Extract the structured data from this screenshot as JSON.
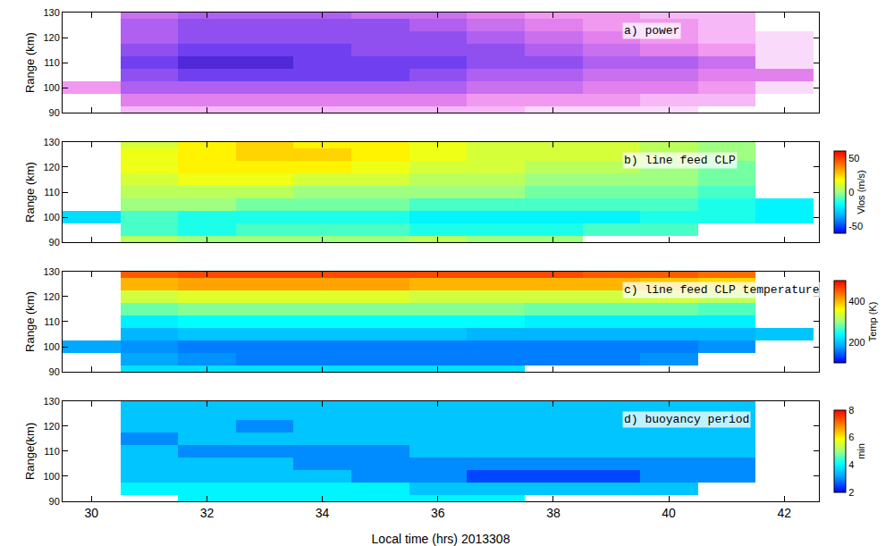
{
  "chart_data": [
    {
      "type": "heatmap",
      "title": "a) power",
      "ylabel": "Range (km)",
      "tick_labels": "y",
      "grid": false,
      "x": [
        30,
        31,
        32,
        33,
        34,
        35,
        36,
        37,
        38,
        39,
        40,
        41,
        42
      ],
      "y": [
        90,
        95,
        100,
        105,
        110,
        115,
        120,
        125,
        130
      ],
      "z": [
        [
          null,
          2,
          2,
          2,
          2,
          2,
          2,
          2,
          1,
          1,
          1,
          null,
          null
        ],
        [
          null,
          4,
          4,
          4,
          4,
          4,
          4,
          3,
          3,
          3,
          2,
          2,
          null
        ],
        [
          3,
          6,
          6,
          6,
          6,
          6,
          6,
          5,
          5,
          4,
          4,
          3,
          1
        ],
        [
          null,
          7,
          8,
          8,
          8,
          8,
          7,
          6,
          6,
          5,
          5,
          4,
          4
        ],
        [
          null,
          8,
          9,
          9,
          8,
          8,
          8,
          7,
          7,
          6,
          6,
          5,
          1
        ],
        [
          null,
          7,
          8,
          8,
          8,
          7,
          7,
          7,
          6,
          5,
          4,
          3,
          1
        ],
        [
          null,
          6,
          7,
          7,
          7,
          7,
          7,
          6,
          5,
          4,
          3,
          2,
          1
        ],
        [
          null,
          6,
          7,
          7,
          7,
          7,
          6,
          5,
          4,
          3,
          3,
          2,
          null
        ],
        [
          null,
          5,
          6,
          6,
          6,
          5,
          5,
          4,
          3,
          3,
          2,
          2,
          null
        ]
      ],
      "zlim": [
        0,
        10
      ],
      "xlim": [
        29.5,
        42.6
      ],
      "xticks": [
        30,
        32,
        34,
        36,
        38,
        40,
        42
      ],
      "ylim": [
        90,
        130
      ],
      "yticks": [
        90,
        100,
        110,
        120,
        130
      ]
    },
    {
      "type": "heatmap",
      "title": "b) line feed CLP",
      "ylabel": "Range (km)",
      "tick_labels": "y",
      "grid": false,
      "x": [
        30,
        31,
        32,
        33,
        34,
        35,
        36,
        37,
        38,
        39,
        40,
        41,
        42
      ],
      "y": [
        90,
        95,
        100,
        105,
        110,
        115,
        120,
        125,
        130
      ],
      "z": [
        [
          null,
          5,
          0,
          0,
          0,
          0,
          5,
          0,
          0,
          null,
          null,
          null,
          null
        ],
        [
          null,
          -10,
          -15,
          -10,
          -10,
          -10,
          -15,
          -15,
          -15,
          -10,
          -10,
          null,
          null
        ],
        [
          -25,
          -10,
          -15,
          -15,
          -15,
          -15,
          -20,
          -20,
          -20,
          -20,
          -15,
          -15,
          -20
        ],
        [
          null,
          0,
          0,
          -5,
          -5,
          -5,
          -10,
          -10,
          -10,
          -10,
          -10,
          -15,
          -20
        ],
        [
          null,
          5,
          5,
          5,
          0,
          0,
          0,
          0,
          -5,
          -5,
          -5,
          -10,
          null
        ],
        [
          null,
          10,
          15,
          15,
          10,
          10,
          5,
          5,
          0,
          0,
          0,
          -5,
          null
        ],
        [
          null,
          15,
          20,
          20,
          20,
          15,
          10,
          10,
          5,
          5,
          0,
          -5,
          null
        ],
        [
          null,
          15,
          20,
          25,
          25,
          20,
          15,
          10,
          10,
          10,
          5,
          0,
          null
        ],
        [
          null,
          10,
          20,
          25,
          20,
          20,
          15,
          10,
          10,
          10,
          5,
          0,
          null
        ]
      ],
      "zlim": [
        -60,
        60
      ],
      "zticks": [
        -50,
        0,
        50
      ],
      "zlabel": "Vlos (m/s)",
      "xlim": [
        29.5,
        42.6
      ],
      "xticks": [
        30,
        32,
        34,
        36,
        38,
        40,
        42
      ],
      "ylim": [
        90,
        130
      ],
      "yticks": [
        90,
        100,
        110,
        120,
        130
      ]
    },
    {
      "type": "heatmap",
      "title": "c) line feed CLP temperature",
      "ylabel": "Range (km)",
      "tick_labels": "y",
      "grid": false,
      "x": [
        30,
        31,
        32,
        33,
        34,
        35,
        36,
        37,
        38,
        39,
        40,
        41,
        42
      ],
      "y": [
        90,
        95,
        100,
        105,
        110,
        115,
        120,
        125,
        130
      ],
      "z": [
        [
          null,
          220,
          220,
          220,
          220,
          220,
          220,
          220,
          null,
          null,
          null,
          null,
          null
        ],
        [
          null,
          180,
          170,
          160,
          160,
          160,
          160,
          160,
          160,
          160,
          170,
          null,
          null
        ],
        [
          180,
          170,
          160,
          160,
          160,
          160,
          160,
          160,
          160,
          160,
          160,
          170,
          null
        ],
        [
          null,
          190,
          200,
          200,
          200,
          200,
          200,
          190,
          190,
          190,
          190,
          190,
          200
        ],
        [
          null,
          230,
          240,
          240,
          240,
          240,
          240,
          240,
          230,
          230,
          230,
          230,
          null
        ],
        [
          null,
          280,
          290,
          290,
          290,
          290,
          290,
          290,
          280,
          280,
          280,
          270,
          null
        ],
        [
          null,
          330,
          340,
          340,
          340,
          340,
          330,
          330,
          330,
          330,
          330,
          320,
          null
        ],
        [
          null,
          400,
          410,
          410,
          410,
          410,
          400,
          400,
          400,
          400,
          390,
          380,
          null
        ],
        [
          null,
          450,
          460,
          460,
          460,
          460,
          460,
          460,
          460,
          450,
          450,
          440,
          null
        ]
      ],
      "zlim": [
        100,
        500
      ],
      "zticks": [
        200,
        400
      ],
      "zlabel": "Temp (K)",
      "xlim": [
        29.5,
        42.6
      ],
      "xticks": [
        30,
        32,
        34,
        36,
        38,
        40,
        42
      ],
      "ylim": [
        90,
        130
      ],
      "yticks": [
        90,
        100,
        110,
        120,
        130
      ]
    },
    {
      "type": "heatmap",
      "title": "d) buoyancy period",
      "ylabel": "Range(km)",
      "xlabel": "Local time (hrs) 2013308",
      "grid": false,
      "x": [
        30,
        31,
        32,
        33,
        34,
        35,
        36,
        37,
        38,
        39,
        40,
        41,
        42
      ],
      "y": [
        90,
        95,
        100,
        105,
        110,
        115,
        120,
        125,
        130
      ],
      "z": [
        [
          null,
          null,
          4,
          4,
          4,
          4,
          4,
          4,
          null,
          null,
          null,
          null,
          null
        ],
        [
          null,
          4,
          4,
          4,
          4,
          4,
          3.5,
          3.5,
          3.5,
          3.5,
          3.5,
          null,
          null
        ],
        [
          null,
          3.5,
          3.5,
          3.5,
          3.5,
          3,
          3,
          2.5,
          2.5,
          2.5,
          3,
          3,
          null
        ],
        [
          null,
          3.5,
          3.5,
          3.5,
          3,
          3,
          3,
          3,
          3,
          3,
          3,
          3,
          null
        ],
        [
          null,
          3.5,
          3,
          3,
          3,
          3,
          3.5,
          3.5,
          3.5,
          3.5,
          3.5,
          3.5,
          null
        ],
        [
          null,
          3,
          3.5,
          3.5,
          3.5,
          3.5,
          3.5,
          3.5,
          3.5,
          3.5,
          3.5,
          3.5,
          null
        ],
        [
          null,
          3.5,
          3.5,
          3,
          3.5,
          3.5,
          3.5,
          3.5,
          3.5,
          3.5,
          3.5,
          3.5,
          null
        ],
        [
          null,
          3.5,
          3.5,
          3.5,
          3.5,
          3.5,
          3.5,
          3.5,
          3.5,
          3.5,
          3.5,
          3.5,
          null
        ],
        [
          null,
          3.5,
          3.5,
          3.5,
          3.5,
          3.5,
          3.5,
          3.5,
          3.5,
          3.5,
          3.5,
          3.5,
          null
        ]
      ],
      "zlim": [
        2,
        8
      ],
      "zticks": [
        2,
        4,
        6,
        8
      ],
      "zlabel": "min",
      "xlim": [
        29.5,
        42.6
      ],
      "xticks": [
        30,
        32,
        34,
        36,
        38,
        40,
        42
      ],
      "ylim": [
        90,
        130
      ],
      "yticks": [
        90,
        100,
        110,
        120,
        130
      ]
    }
  ]
}
